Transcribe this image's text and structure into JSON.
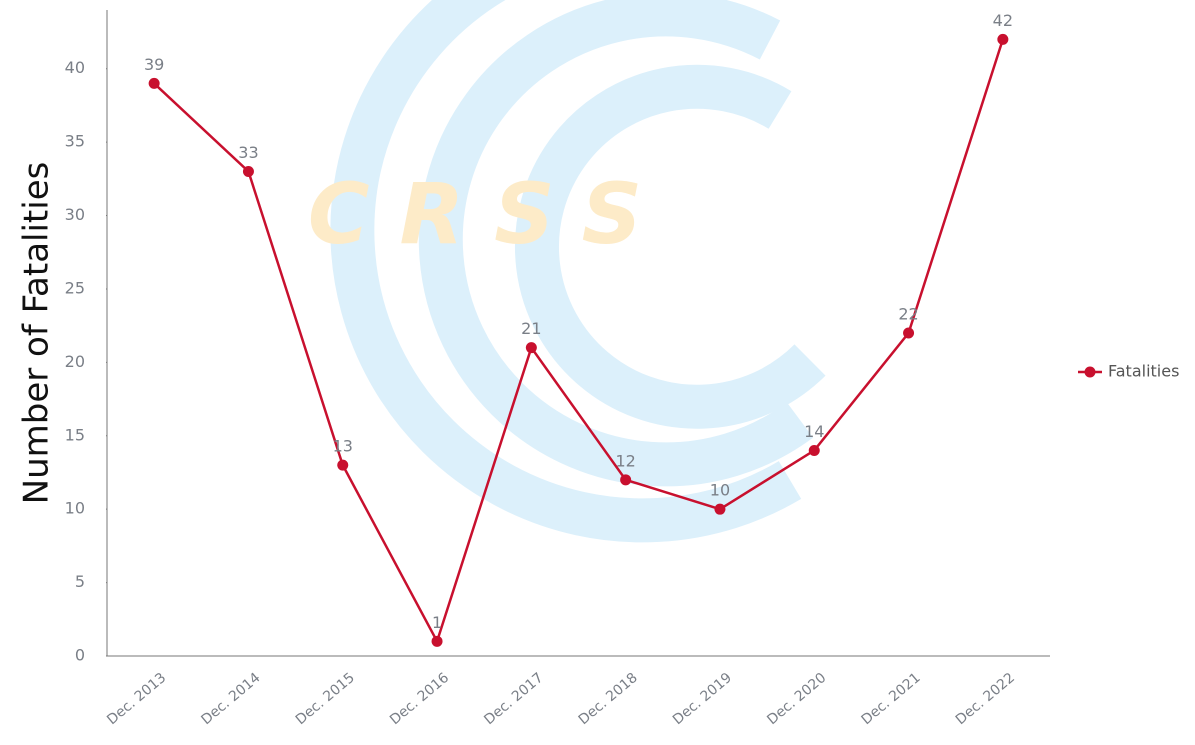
{
  "chart_data": {
    "type": "line",
    "watermark": "CRSS",
    "y_label": "Number of Fatalities",
    "categories": [
      "Dec. 2013",
      "Dec. 2014",
      "Dec. 2015",
      "Dec. 2016",
      "Dec. 2017",
      "Dec. 2018",
      "Dec. 2019",
      "Dec. 2020",
      "Dec. 2021",
      "Dec. 2022"
    ],
    "series": [
      {
        "name": "Fatalities",
        "color": "#c8102e",
        "values": [
          39,
          33,
          13,
          1,
          21,
          12,
          10,
          14,
          22,
          42
        ]
      }
    ],
    "ylim": [
      0,
      44
    ],
    "yticks": [
      0,
      5,
      10,
      15,
      20,
      25,
      30,
      35,
      40
    ],
    "grid": false,
    "legend": "right"
  }
}
